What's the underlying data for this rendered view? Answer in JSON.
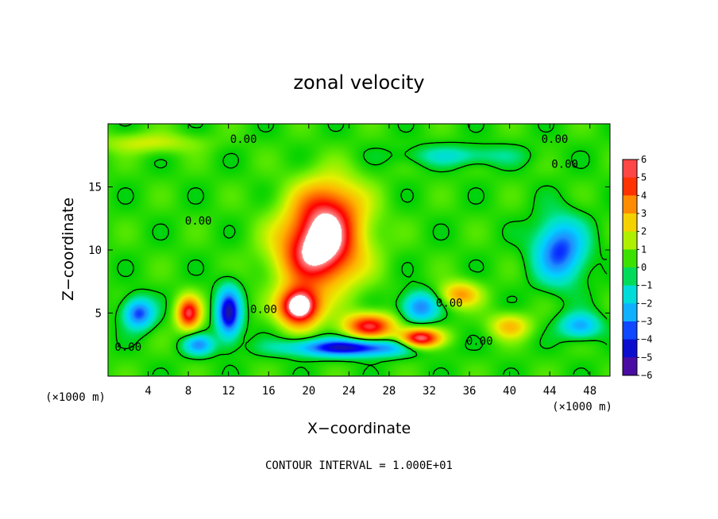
{
  "chart_data": {
    "type": "heatmap",
    "title": "zonal velocity",
    "xlabel": "X−coordinate",
    "ylabel": "Z−coordinate",
    "x_unit_label": "(×1000 m)",
    "x_unit_label_right": "(×1000 m)",
    "xlim": [
      0,
      50
    ],
    "ylim": [
      0,
      20
    ],
    "x_ticks": [
      4,
      8,
      12,
      16,
      20,
      24,
      28,
      32,
      36,
      40,
      44,
      48
    ],
    "y_ticks": [
      5,
      10,
      15
    ],
    "colorbar": {
      "ticks": [
        6,
        5,
        4,
        3,
        2,
        1,
        0,
        -1,
        -2,
        -3,
        -4,
        -5,
        -6
      ],
      "tick_labels": [
        "6",
        "5",
        "4",
        "3",
        "2",
        "1",
        "0",
        "−1",
        "−2",
        "−3",
        "−4",
        "−5",
        "−6"
      ],
      "range": [
        -6,
        6
      ],
      "colors": [
        "#7a00a6",
        "#1a1aa0",
        "#0000ff",
        "#1e8fff",
        "#00d2ff",
        "#00e6b4",
        "#00d200",
        "#78f000",
        "#e6f000",
        "#ffb400",
        "#ff6400",
        "#ff0000",
        "#ff8c8c",
        "#ffffff"
      ]
    },
    "background_value": 0.3,
    "features": [
      {
        "kind": "max",
        "x": 21,
        "y": 10,
        "amplitude": 6.5,
        "sx": 4,
        "sz": 3
      },
      {
        "kind": "max",
        "x": 22,
        "y": 13.5,
        "amplitude": 3.5,
        "sx": 3.5,
        "sz": 2.5
      },
      {
        "kind": "max",
        "x": 19,
        "y": 5.5,
        "amplitude": 7,
        "sx": 2,
        "sz": 1.5
      },
      {
        "kind": "max",
        "x": 26,
        "y": 4,
        "amplitude": 5,
        "sx": 2.5,
        "sz": 1
      },
      {
        "kind": "max",
        "x": 31,
        "y": 3,
        "amplitude": 6,
        "sx": 2,
        "sz": 0.8
      },
      {
        "kind": "max",
        "x": 8,
        "y": 5,
        "amplitude": 5,
        "sx": 1.2,
        "sz": 1.3
      },
      {
        "kind": "max",
        "x": 35,
        "y": 6.5,
        "amplitude": 3,
        "sx": 2,
        "sz": 1
      },
      {
        "kind": "max",
        "x": 40,
        "y": 4,
        "amplitude": 2.5,
        "sx": 2,
        "sz": 1
      },
      {
        "kind": "min",
        "x": 45,
        "y": 10,
        "amplitude": -4,
        "sx": 2.5,
        "sz": 2.5
      },
      {
        "kind": "min",
        "x": 12,
        "y": 5,
        "amplitude": -5,
        "sx": 1.2,
        "sz": 2
      },
      {
        "kind": "min",
        "x": 3,
        "y": 5,
        "amplitude": -4,
        "sx": 1.5,
        "sz": 1.2
      },
      {
        "kind": "min",
        "x": 31,
        "y": 5.5,
        "amplitude": -3.5,
        "sx": 1.8,
        "sz": 1.2
      },
      {
        "kind": "min",
        "x": 24,
        "y": 2.3,
        "amplitude": -5,
        "sx": 6,
        "sz": 0.7
      },
      {
        "kind": "min",
        "x": 47,
        "y": 4,
        "amplitude": -3,
        "sx": 2,
        "sz": 1
      },
      {
        "kind": "min",
        "x": 9,
        "y": 2.5,
        "amplitude": -3,
        "sx": 1.5,
        "sz": 0.8
      },
      {
        "kind": "min",
        "x": 35,
        "y": 17.5,
        "amplitude": -1.5,
        "sx": 6,
        "sz": 0.8
      },
      {
        "kind": "max",
        "x": 4,
        "y": 18.5,
        "amplitude": 1.5,
        "sx": 5,
        "sz": 0.8
      }
    ],
    "contour_labels": [
      "0.00",
      "0.00",
      "0.00",
      "0.00",
      "0.00",
      "0.00",
      "0.00",
      "0.00"
    ],
    "contour_interval_note": "CONTOUR INTERVAL = 1.000E+01"
  }
}
